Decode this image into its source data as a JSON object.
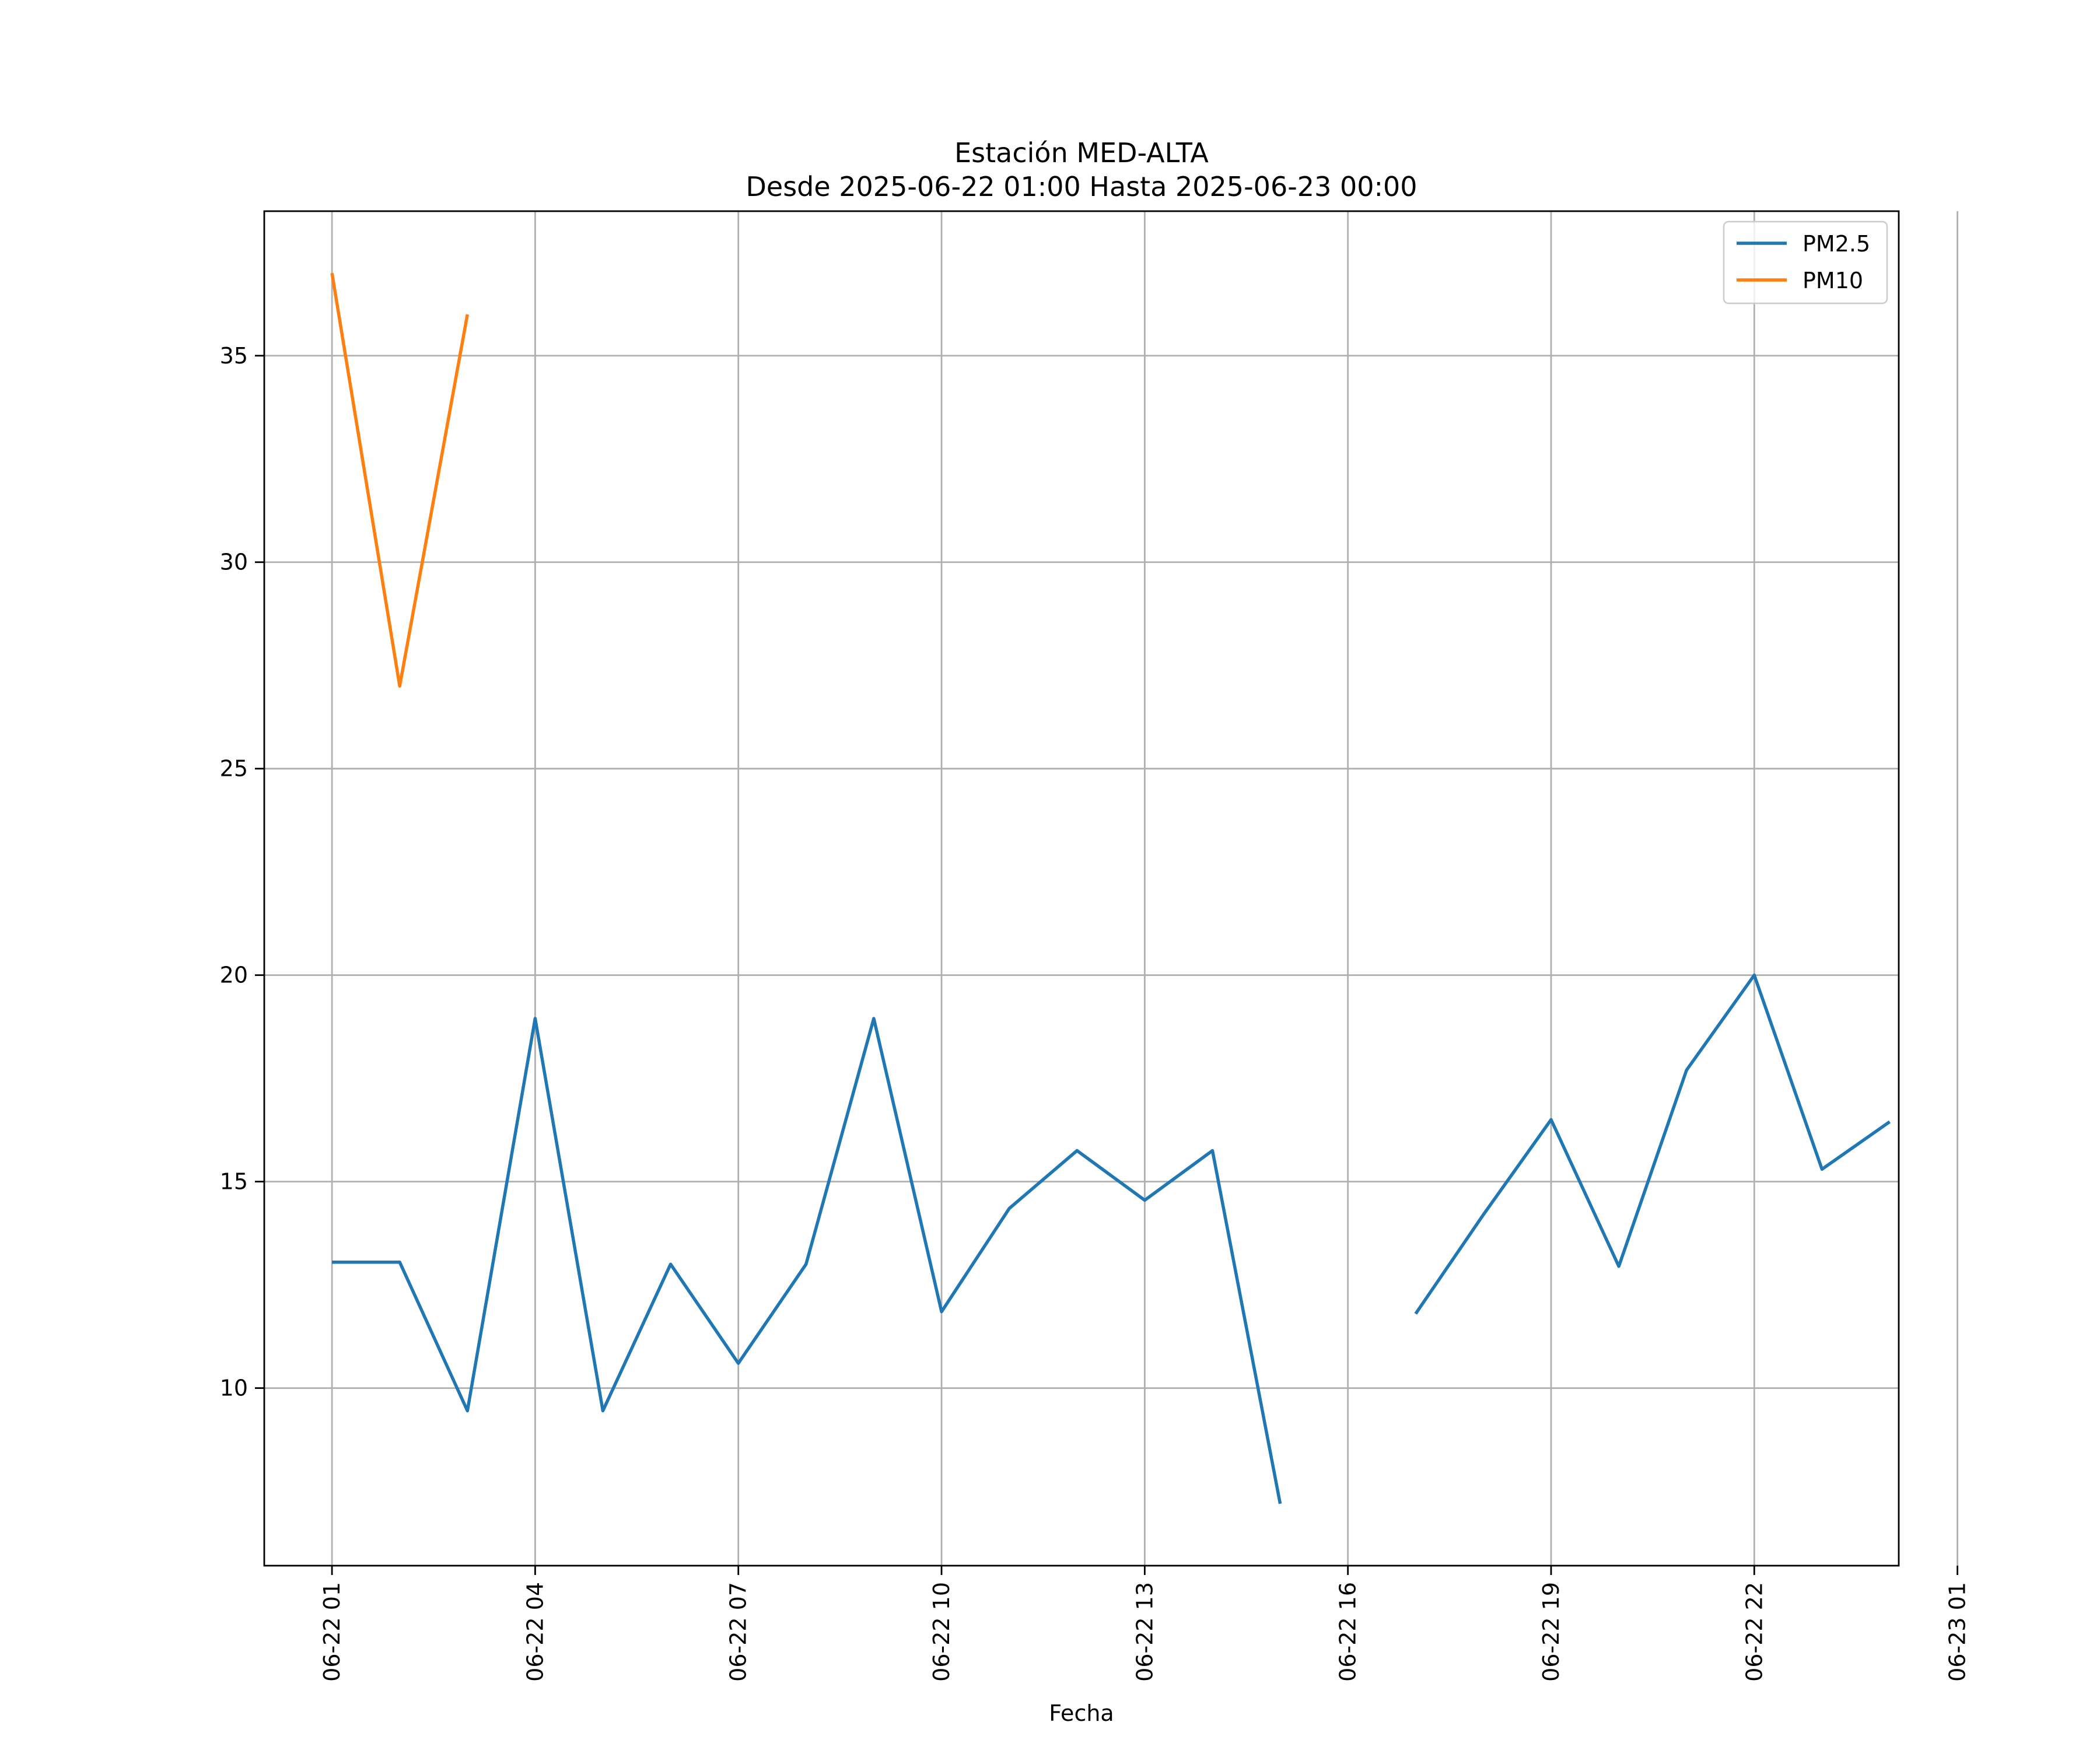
{
  "chart_data": {
    "type": "line",
    "title": "Estación MED-ALTA",
    "subtitle": "Desde 2025-06-22 01:00 Hasta 2025-06-23 00:00",
    "xlabel": "Fecha",
    "ylabel": "",
    "x": [
      "06-22 01",
      "06-22 02",
      "06-22 03",
      "06-22 04",
      "06-22 05",
      "06-22 06",
      "06-22 07",
      "06-22 08",
      "06-22 09",
      "06-22 10",
      "06-22 11",
      "06-22 12",
      "06-22 13",
      "06-22 14",
      "06-22 15",
      "06-22 16",
      "06-22 17",
      "06-22 18",
      "06-22 19",
      "06-22 20",
      "06-22 21",
      "06-22 22",
      "06-22 23",
      "06-23 00"
    ],
    "xlim": [
      "06-22 00:00",
      "06-23 01:08"
    ],
    "ylim": [
      5.7,
      38.5
    ],
    "x_ticks": [
      "06-22 01",
      "06-22 04",
      "06-22 07",
      "06-22 10",
      "06-22 13",
      "06-22 16",
      "06-22 19",
      "06-22 22",
      "06-23 01"
    ],
    "y_ticks": [
      10,
      15,
      20,
      25,
      30,
      35
    ],
    "grid": true,
    "legend_position": "top-right",
    "series": [
      {
        "name": "PM2.5",
        "color": "#1f77b4",
        "values": [
          13.05,
          13.05,
          9.45,
          18.95,
          9.45,
          13.0,
          10.6,
          13.0,
          18.95,
          11.85,
          14.35,
          15.75,
          14.55,
          15.75,
          7.2,
          null,
          11.8,
          14.2,
          16.5,
          12.95,
          17.7,
          20.0,
          15.3,
          16.45
        ]
      },
      {
        "name": "PM10",
        "color": "#ff7f0e",
        "values": [
          37.0,
          27.0,
          36.0,
          null,
          null,
          null,
          null,
          null,
          null,
          null,
          null,
          null,
          null,
          null,
          null,
          null,
          null,
          null,
          null,
          null,
          null,
          null,
          null,
          null
        ]
      }
    ]
  }
}
